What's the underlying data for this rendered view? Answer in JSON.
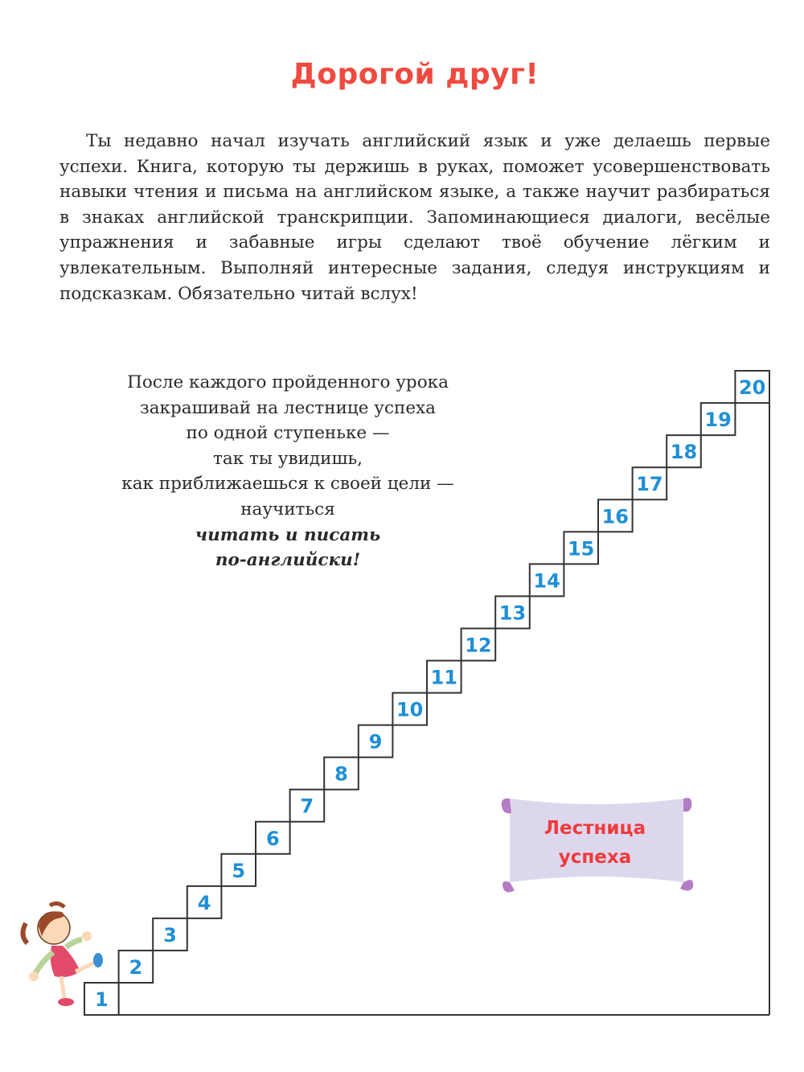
{
  "title": "Дорогой друг!",
  "intro": "Ты недавно начал изучать английский язык и уже делаешь первые успехи. Книга, которую ты держишь в руках, поможет усовершенствовать навыки чтения и письма на английском языке, а также научит разбираться в знаках английской транскрипции. Запоминающиеся диалоги, весёлые упражнения и забавные игры сделают твоё обучение лёгким и увлекательным. Выполняй интересные задания, следуя инструкциям и подсказкам. Обязательно читай вслух!",
  "note": {
    "lines": [
      "После каждого пройденного урока",
      "закрашивай на лестнице успеха",
      "по одной ступеньке —",
      "так ты увидишь,",
      "как приближаешься к своей цели —",
      "научиться"
    ],
    "emphasis": [
      "читать и писать",
      "по-английски!"
    ]
  },
  "banner": {
    "line1": "Лестница",
    "line2": "успеха"
  },
  "stairs": {
    "steps": [
      "1",
      "2",
      "3",
      "4",
      "5",
      "6",
      "7",
      "8",
      "9",
      "10",
      "11",
      "12",
      "13",
      "14",
      "15",
      "16",
      "17",
      "18",
      "19",
      "20"
    ],
    "number_color": "#1f8fd6",
    "line_color": "#333333"
  },
  "colors": {
    "title": "#ef4a3f",
    "banner_fill": "#ddd7ee",
    "banner_curl": "#b57cc6",
    "banner_text": "#ee3b3b"
  }
}
